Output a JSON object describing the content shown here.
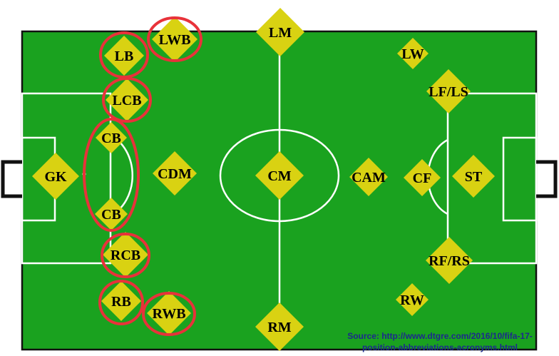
{
  "colors": {
    "pitch": "#1aa21f",
    "lines": "#ffffff",
    "marker": "#d9d212",
    "highlight": "#e8323a",
    "source_text": "#1c2a8c"
  },
  "positions": [
    {
      "id": "lwb",
      "label": "LWB",
      "highlighted": true
    },
    {
      "id": "lm",
      "label": "LM",
      "highlighted": false
    },
    {
      "id": "lb",
      "label": "LB",
      "highlighted": true
    },
    {
      "id": "lw",
      "label": "LW",
      "highlighted": false
    },
    {
      "id": "lcb",
      "label": "LCB",
      "highlighted": true
    },
    {
      "id": "lf-ls",
      "label": "LF/LS",
      "highlighted": false
    },
    {
      "id": "cb-top",
      "label": "CB",
      "highlighted": true
    },
    {
      "id": "gk",
      "label": "GK",
      "highlighted": false
    },
    {
      "id": "cdm",
      "label": "CDM",
      "highlighted": false
    },
    {
      "id": "cm",
      "label": "CM",
      "highlighted": false
    },
    {
      "id": "cam",
      "label": "CAM",
      "highlighted": false
    },
    {
      "id": "cf",
      "label": "CF",
      "highlighted": false
    },
    {
      "id": "st",
      "label": "ST",
      "highlighted": false
    },
    {
      "id": "cb-bottom",
      "label": "CB",
      "highlighted": true
    },
    {
      "id": "rcb",
      "label": "RCB",
      "highlighted": true
    },
    {
      "id": "rf-rs",
      "label": "RF/RS",
      "highlighted": false
    },
    {
      "id": "rb",
      "label": "RB",
      "highlighted": true
    },
    {
      "id": "rw",
      "label": "RW",
      "highlighted": false
    },
    {
      "id": "rwb",
      "label": "RWB",
      "highlighted": true
    },
    {
      "id": "rm",
      "label": "RM",
      "highlighted": false
    }
  ],
  "source": {
    "line1": "Source: http://www.dtgre.com/2016/10/fifa-17-",
    "line2": "position-abbreviations-acronyms.html"
  }
}
